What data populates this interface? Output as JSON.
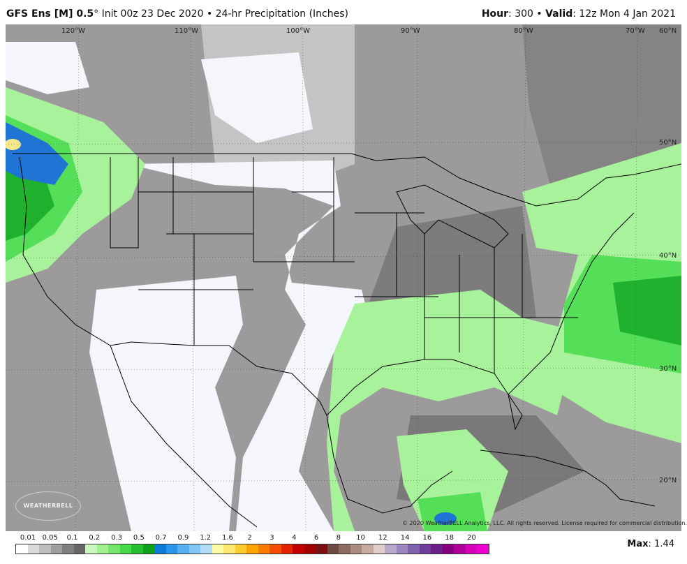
{
  "header": {
    "model": "GFS Ens [M] 0.5",
    "degree": "°",
    "init": "Init 00z 23 Dec 2020",
    "separator": "•",
    "product": "24-hr Precipitation (Inches)",
    "hour_label": "Hour",
    "hour_value": ": 300",
    "valid_label": "Valid",
    "valid_value": ": 12z Mon 4 Jan 2021"
  },
  "map": {
    "longitude_labels": [
      "120°W",
      "110°W",
      "100°W",
      "90°W",
      "80°W",
      "70°W",
      "60°N"
    ],
    "latitude_labels": [
      "50°N",
      "40°N",
      "30°N",
      "20°N"
    ],
    "colors": {
      "background_gray": "#9c9a9a",
      "dark_gray": "#7d7b7b",
      "light_gray": "#c4c4c4",
      "dry": "#f5f6fb",
      "green_light": "#a7f29b",
      "green": "#55de57",
      "green_dark": "#20b22f",
      "blue": "#1f74d4",
      "yellow": "#f5e88a",
      "borders": "#000000"
    }
  },
  "copyright": "© 2020 WeatherBELL Analytics, LLC. All rights reserved. License required for commercial distribution.",
  "logo": "WEATHERBELL",
  "legend": {
    "labels": [
      "0.01",
      "0.05",
      "0.1",
      "0.2",
      "0.3",
      "0.5",
      "0.7",
      "0.9",
      "1.2",
      "1.6",
      "2",
      "3",
      "4",
      "6",
      "8",
      "10",
      "12",
      "14",
      "16",
      "18",
      "20"
    ],
    "colors": [
      "#ffffff",
      "#d9d9d9",
      "#bdbdbd",
      "#9e9e9e",
      "#7f7f7f",
      "#666666",
      "#c8f7c0",
      "#a3f091",
      "#75e66b",
      "#48d947",
      "#21c02c",
      "#0f9e1e",
      "#0b7dd9",
      "#2b95ee",
      "#56aff0",
      "#82c7f3",
      "#b0dcf6",
      "#fbfba6",
      "#fde871",
      "#fbcc2d",
      "#fba600",
      "#fb7a00",
      "#f54d00",
      "#e42200",
      "#c50000",
      "#a30000",
      "#7a1010",
      "#6e4a44",
      "#8c6b62",
      "#a88a80",
      "#c5aba2",
      "#e2cec8",
      "#b9aacd",
      "#9d85be",
      "#8164ae",
      "#6f3e9b",
      "#6b1f88",
      "#86007d",
      "#b1009a",
      "#d800b9",
      "#f000d0"
    ],
    "max_label": "Max",
    "max_value": ": 1.44"
  }
}
